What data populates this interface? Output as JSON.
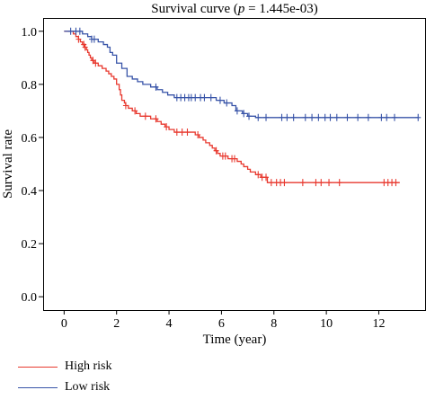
{
  "chart_data": {
    "type": "line",
    "title_prefix": "Survival curve (",
    "title_p": "p",
    "title_suffix": " = 1.445e-03)",
    "xlabel": "Time (year)",
    "ylabel": "Survival rate",
    "xlim": [
      -0.8,
      13.8
    ],
    "ylim": [
      -0.05,
      1.05
    ],
    "xticks": [
      0,
      2,
      4,
      6,
      8,
      10,
      12
    ],
    "yticks": [
      0.0,
      0.2,
      0.4,
      0.6,
      0.8,
      1.0
    ],
    "ytick_labels": [
      "0.0",
      "0.2",
      "0.4",
      "0.6",
      "0.8",
      "1.0"
    ],
    "legend_position": "bottom-left, outside plot",
    "grid": false,
    "series": [
      {
        "name": "High risk",
        "color": "#e8392f",
        "steps": [
          [
            0.0,
            1.0
          ],
          [
            0.35,
            0.99
          ],
          [
            0.45,
            0.98
          ],
          [
            0.55,
            0.97
          ],
          [
            0.62,
            0.96
          ],
          [
            0.7,
            0.95
          ],
          [
            0.78,
            0.94
          ],
          [
            0.85,
            0.93
          ],
          [
            0.9,
            0.92
          ],
          [
            0.95,
            0.91
          ],
          [
            1.0,
            0.9
          ],
          [
            1.05,
            0.89
          ],
          [
            1.15,
            0.88
          ],
          [
            1.3,
            0.87
          ],
          [
            1.45,
            0.86
          ],
          [
            1.6,
            0.85
          ],
          [
            1.7,
            0.84
          ],
          [
            1.8,
            0.83
          ],
          [
            1.9,
            0.82
          ],
          [
            2.0,
            0.8
          ],
          [
            2.1,
            0.78
          ],
          [
            2.15,
            0.76
          ],
          [
            2.2,
            0.74
          ],
          [
            2.3,
            0.73
          ],
          [
            2.35,
            0.72
          ],
          [
            2.45,
            0.71
          ],
          [
            2.6,
            0.7
          ],
          [
            2.75,
            0.69
          ],
          [
            2.9,
            0.68
          ],
          [
            3.3,
            0.67
          ],
          [
            3.55,
            0.66
          ],
          [
            3.7,
            0.65
          ],
          [
            3.85,
            0.64
          ],
          [
            4.0,
            0.63
          ],
          [
            4.2,
            0.62
          ],
          [
            5.0,
            0.61
          ],
          [
            5.15,
            0.6
          ],
          [
            5.3,
            0.59
          ],
          [
            5.4,
            0.58
          ],
          [
            5.55,
            0.57
          ],
          [
            5.65,
            0.56
          ],
          [
            5.75,
            0.55
          ],
          [
            5.85,
            0.54
          ],
          [
            5.95,
            0.53
          ],
          [
            6.25,
            0.52
          ],
          [
            6.6,
            0.51
          ],
          [
            6.75,
            0.5
          ],
          [
            6.85,
            0.49
          ],
          [
            7.0,
            0.48
          ],
          [
            7.1,
            0.47
          ],
          [
            7.3,
            0.46
          ],
          [
            7.5,
            0.45
          ],
          [
            7.75,
            0.43
          ],
          [
            12.8,
            0.43
          ]
        ],
        "censored": [
          [
            0.55,
            0.97
          ],
          [
            0.75,
            0.95
          ],
          [
            0.8,
            0.94
          ],
          [
            1.1,
            0.89
          ],
          [
            1.2,
            0.88
          ],
          [
            2.35,
            0.72
          ],
          [
            2.7,
            0.7
          ],
          [
            3.1,
            0.68
          ],
          [
            3.5,
            0.67
          ],
          [
            3.9,
            0.64
          ],
          [
            4.3,
            0.62
          ],
          [
            4.5,
            0.62
          ],
          [
            4.7,
            0.62
          ],
          [
            5.1,
            0.61
          ],
          [
            5.8,
            0.55
          ],
          [
            6.05,
            0.53
          ],
          [
            6.15,
            0.53
          ],
          [
            6.4,
            0.52
          ],
          [
            6.5,
            0.52
          ],
          [
            7.4,
            0.46
          ],
          [
            7.55,
            0.45
          ],
          [
            7.7,
            0.45
          ],
          [
            7.9,
            0.43
          ],
          [
            8.1,
            0.43
          ],
          [
            8.25,
            0.43
          ],
          [
            8.4,
            0.43
          ],
          [
            9.1,
            0.43
          ],
          [
            9.6,
            0.43
          ],
          [
            9.8,
            0.43
          ],
          [
            10.1,
            0.43
          ],
          [
            10.5,
            0.43
          ],
          [
            12.2,
            0.43
          ],
          [
            12.35,
            0.43
          ],
          [
            12.5,
            0.43
          ],
          [
            12.65,
            0.43
          ]
        ]
      },
      {
        "name": "Low risk",
        "color": "#3854a8",
        "steps": [
          [
            0.0,
            1.0
          ],
          [
            0.7,
            0.99
          ],
          [
            0.9,
            0.98
          ],
          [
            1.05,
            0.97
          ],
          [
            1.3,
            0.96
          ],
          [
            1.5,
            0.95
          ],
          [
            1.65,
            0.94
          ],
          [
            1.75,
            0.92
          ],
          [
            1.85,
            0.91
          ],
          [
            2.0,
            0.88
          ],
          [
            2.2,
            0.86
          ],
          [
            2.4,
            0.83
          ],
          [
            2.6,
            0.82
          ],
          [
            2.8,
            0.81
          ],
          [
            3.0,
            0.8
          ],
          [
            3.3,
            0.79
          ],
          [
            3.55,
            0.78
          ],
          [
            3.75,
            0.77
          ],
          [
            3.95,
            0.76
          ],
          [
            4.2,
            0.75
          ],
          [
            5.8,
            0.74
          ],
          [
            6.1,
            0.73
          ],
          [
            6.4,
            0.72
          ],
          [
            6.55,
            0.7
          ],
          [
            6.8,
            0.69
          ],
          [
            7.0,
            0.68
          ],
          [
            7.3,
            0.675
          ],
          [
            13.5,
            0.675
          ]
        ],
        "censored": [
          [
            0.25,
            1.0
          ],
          [
            0.45,
            1.0
          ],
          [
            0.6,
            1.0
          ],
          [
            1.05,
            0.97
          ],
          [
            1.15,
            0.97
          ],
          [
            3.5,
            0.79
          ],
          [
            4.3,
            0.75
          ],
          [
            4.45,
            0.75
          ],
          [
            4.6,
            0.75
          ],
          [
            4.75,
            0.75
          ],
          [
            4.85,
            0.75
          ],
          [
            5.0,
            0.75
          ],
          [
            5.2,
            0.75
          ],
          [
            5.35,
            0.75
          ],
          [
            5.6,
            0.75
          ],
          [
            5.95,
            0.74
          ],
          [
            6.2,
            0.73
          ],
          [
            6.6,
            0.7
          ],
          [
            6.85,
            0.69
          ],
          [
            7.05,
            0.68
          ],
          [
            7.4,
            0.675
          ],
          [
            7.7,
            0.675
          ],
          [
            8.3,
            0.675
          ],
          [
            8.5,
            0.675
          ],
          [
            8.75,
            0.675
          ],
          [
            9.2,
            0.675
          ],
          [
            9.45,
            0.675
          ],
          [
            9.7,
            0.675
          ],
          [
            9.95,
            0.675
          ],
          [
            10.15,
            0.675
          ],
          [
            10.4,
            0.675
          ],
          [
            10.8,
            0.675
          ],
          [
            11.2,
            0.675
          ],
          [
            11.6,
            0.675
          ],
          [
            12.1,
            0.675
          ],
          [
            12.3,
            0.675
          ],
          [
            12.6,
            0.675
          ],
          [
            13.5,
            0.675
          ]
        ]
      }
    ]
  }
}
